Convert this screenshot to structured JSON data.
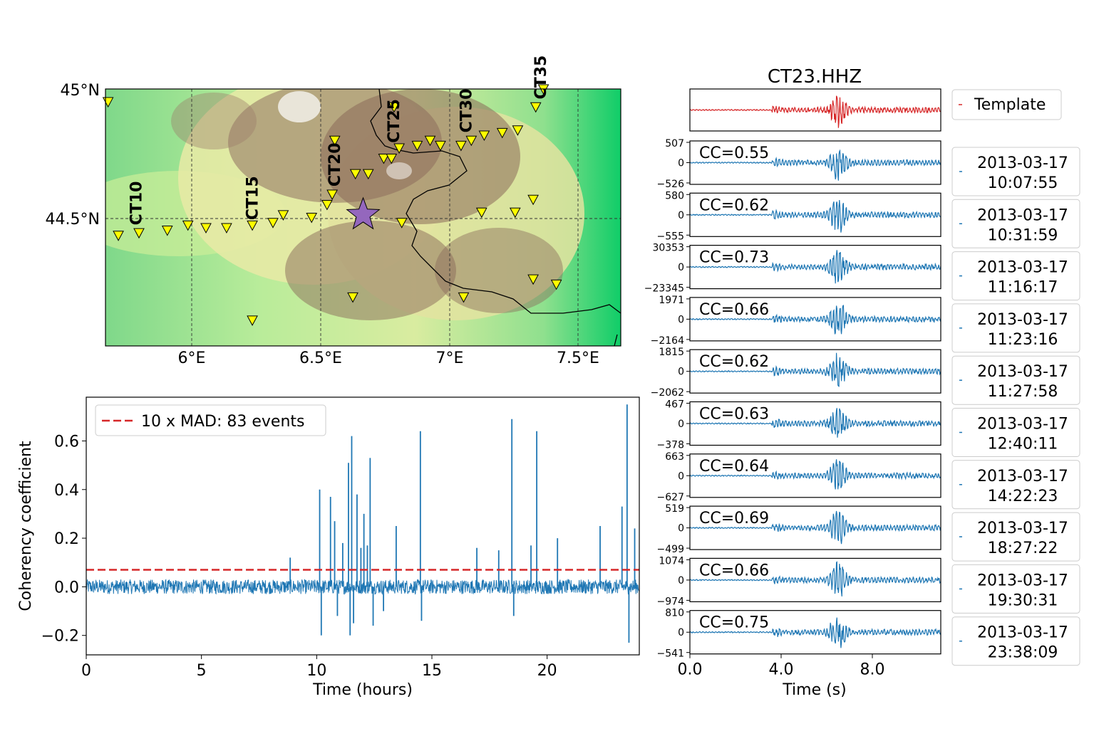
{
  "colors": {
    "trace": "#1f77b4",
    "template": "#d62728",
    "threshold": "#d62728",
    "station": "#ffff00",
    "star": "#9467bd",
    "border": "#000000"
  },
  "chart_data": [
    {
      "type": "map",
      "lat_ticks": [
        "45°N",
        "44.5°N"
      ],
      "lon_ticks": [
        "6°E",
        "6.5°E",
        "7°E",
        "7.5°E"
      ],
      "lon_range": [
        5.66,
        7.66
      ],
      "lat_range": [
        44.0,
        45.0
      ],
      "stations": [
        {
          "lon": 5.67,
          "lat": 44.95
        },
        {
          "lon": 5.71,
          "lat": 44.43
        },
        {
          "lon": 5.79,
          "lat": 44.44
        },
        {
          "lon": 5.9,
          "lat": 44.45
        },
        {
          "lon": 5.98,
          "lat": 44.47
        },
        {
          "lon": 6.05,
          "lat": 44.46
        },
        {
          "lon": 6.13,
          "lat": 44.46
        },
        {
          "lon": 6.23,
          "lat": 44.47
        },
        {
          "lon": 6.31,
          "lat": 44.48
        },
        {
          "lon": 6.35,
          "lat": 44.51
        },
        {
          "lon": 6.46,
          "lat": 44.5
        },
        {
          "lon": 6.52,
          "lat": 44.55
        },
        {
          "lon": 6.54,
          "lat": 44.59
        },
        {
          "lon": 6.55,
          "lat": 44.8
        },
        {
          "lon": 6.63,
          "lat": 44.67
        },
        {
          "lon": 6.68,
          "lat": 44.67
        },
        {
          "lon": 6.74,
          "lat": 44.73
        },
        {
          "lon": 6.77,
          "lat": 44.73
        },
        {
          "lon": 6.78,
          "lat": 44.93
        },
        {
          "lon": 6.8,
          "lat": 44.77
        },
        {
          "lon": 6.81,
          "lat": 44.48
        },
        {
          "lon": 6.87,
          "lat": 44.78
        },
        {
          "lon": 6.92,
          "lat": 44.8
        },
        {
          "lon": 6.96,
          "lat": 44.78
        },
        {
          "lon": 7.04,
          "lat": 44.78
        },
        {
          "lon": 7.08,
          "lat": 44.8
        },
        {
          "lon": 7.12,
          "lat": 44.52
        },
        {
          "lon": 7.13,
          "lat": 44.82
        },
        {
          "lon": 7.2,
          "lat": 44.83
        },
        {
          "lon": 7.25,
          "lat": 44.52
        },
        {
          "lon": 7.26,
          "lat": 44.84
        },
        {
          "lon": 7.32,
          "lat": 44.57
        },
        {
          "lon": 7.33,
          "lat": 44.93
        },
        {
          "lon": 7.36,
          "lat": 45.0
        },
        {
          "lon": 6.23,
          "lat": 44.1
        },
        {
          "lon": 6.62,
          "lat": 44.19
        },
        {
          "lon": 7.05,
          "lat": 44.19
        },
        {
          "lon": 7.32,
          "lat": 44.26
        },
        {
          "lon": 7.41,
          "lat": 44.24
        }
      ],
      "station_labels": [
        {
          "text": "CT10",
          "lon": 5.8,
          "lat": 44.47
        },
        {
          "text": "CT15",
          "lon": 6.25,
          "lat": 44.49
        },
        {
          "text": "CT20",
          "lon": 6.57,
          "lat": 44.62
        },
        {
          "text": "CT25",
          "lon": 6.8,
          "lat": 44.79
        },
        {
          "text": "CT30",
          "lon": 7.08,
          "lat": 44.83
        },
        {
          "text": "CT35",
          "lon": 7.37,
          "lat": 44.96
        }
      ],
      "epicenter": {
        "lon": 6.66,
        "lat": 44.51
      }
    },
    {
      "type": "line",
      "xlabel": "Time (hours)",
      "ylabel": "Coherency coefficient",
      "xlim": [
        0,
        24
      ],
      "ylim": [
        -0.28,
        0.78
      ],
      "xticks": [
        0,
        5,
        10,
        15,
        20
      ],
      "yticks": [
        -0.2,
        0.0,
        0.2,
        0.4,
        0.6
      ],
      "ytick_labels": [
        "−0.2",
        "0.0",
        "0.2",
        "0.4",
        "0.6"
      ],
      "noise_amplitude": 0.03,
      "threshold": 0.07,
      "legend": "10 x MAD: 83 events",
      "legend_position": "top-left",
      "spikes": [
        {
          "x": 8.85,
          "y": 0.12
        },
        {
          "x": 10.13,
          "y": 0.4
        },
        {
          "x": 10.2,
          "y": -0.2
        },
        {
          "x": 10.6,
          "y": 0.37
        },
        {
          "x": 10.78,
          "y": 0.27
        },
        {
          "x": 10.9,
          "y": -0.12
        },
        {
          "x": 11.13,
          "y": 0.18
        },
        {
          "x": 11.38,
          "y": 0.51
        },
        {
          "x": 11.45,
          "y": -0.2
        },
        {
          "x": 11.52,
          "y": 0.62
        },
        {
          "x": 11.6,
          "y": -0.15
        },
        {
          "x": 11.75,
          "y": 0.38
        },
        {
          "x": 11.92,
          "y": 0.16
        },
        {
          "x": 12.05,
          "y": 0.3
        },
        {
          "x": 12.2,
          "y": 0.17
        },
        {
          "x": 12.32,
          "y": 0.53
        },
        {
          "x": 12.45,
          "y": -0.16
        },
        {
          "x": 12.9,
          "y": -0.1
        },
        {
          "x": 13.45,
          "y": 0.25
        },
        {
          "x": 14.5,
          "y": 0.64
        },
        {
          "x": 14.55,
          "y": -0.14
        },
        {
          "x": 16.95,
          "y": 0.16
        },
        {
          "x": 17.9,
          "y": 0.15
        },
        {
          "x": 18.47,
          "y": 0.69
        },
        {
          "x": 18.55,
          "y": -0.12
        },
        {
          "x": 19.3,
          "y": 0.17
        },
        {
          "x": 19.55,
          "y": 0.64
        },
        {
          "x": 20.45,
          "y": 0.2
        },
        {
          "x": 22.3,
          "y": 0.25
        },
        {
          "x": 23.25,
          "y": 0.33
        },
        {
          "x": 23.47,
          "y": 0.75
        },
        {
          "x": 23.55,
          "y": -0.23
        },
        {
          "x": 23.8,
          "y": 0.24
        }
      ]
    },
    {
      "type": "waveforms",
      "title": "CT23.HHZ",
      "xlabel": "Time (s)",
      "xlim": [
        0,
        11
      ],
      "xticks": [
        0,
        4,
        8
      ],
      "xtick_labels": [
        "0.0",
        "4.0",
        "8.0"
      ],
      "template_label": "Template",
      "events": [
        {
          "cc": "CC=0.55",
          "ymax": "507",
          "ymin": "−526",
          "date": "2013-03-17",
          "time": "10:07:55"
        },
        {
          "cc": "CC=0.62",
          "ymax": "580",
          "ymin": "−555",
          "date": "2013-03-17",
          "time": "10:31:59"
        },
        {
          "cc": "CC=0.73",
          "ymax": "30353",
          "ymin": "−23345",
          "date": "2013-03-17",
          "time": "11:16:17"
        },
        {
          "cc": "CC=0.66",
          "ymax": "1971",
          "ymin": "−2164",
          "date": "2013-03-17",
          "time": "11:23:16"
        },
        {
          "cc": "CC=0.62",
          "ymax": "1815",
          "ymin": "−2062",
          "date": "2013-03-17",
          "time": "11:27:58"
        },
        {
          "cc": "CC=0.63",
          "ymax": "467",
          "ymin": "−378",
          "date": "2013-03-17",
          "time": "12:40:11"
        },
        {
          "cc": "CC=0.64",
          "ymax": "663",
          "ymin": "−627",
          "date": "2013-03-17",
          "time": "14:22:23"
        },
        {
          "cc": "CC=0.69",
          "ymax": "519",
          "ymin": "−499",
          "date": "2013-03-17",
          "time": "18:27:22"
        },
        {
          "cc": "CC=0.66",
          "ymax": "1074",
          "ymin": "−974",
          "date": "2013-03-17",
          "time": "19:30:31"
        },
        {
          "cc": "CC=0.75",
          "ymax": "810",
          "ymin": "−541",
          "date": "2013-03-17",
          "time": "23:38:09"
        }
      ]
    }
  ]
}
